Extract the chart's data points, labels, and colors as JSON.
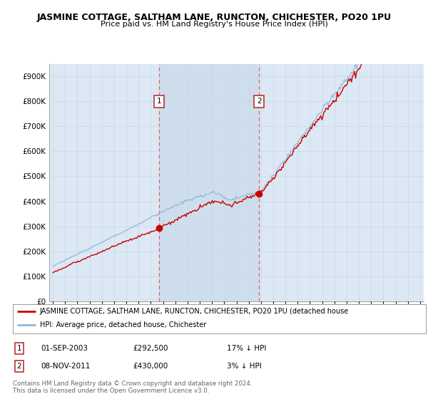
{
  "title": "JASMINE COTTAGE, SALTHAM LANE, RUNCTON, CHICHESTER, PO20 1PU",
  "subtitle": "Price paid vs. HM Land Registry's House Price Index (HPI)",
  "ylabel_ticks": [
    "£0",
    "£100K",
    "£200K",
    "£300K",
    "£400K",
    "£500K",
    "£600K",
    "£700K",
    "£800K",
    "£900K"
  ],
  "ytick_values": [
    0,
    100000,
    200000,
    300000,
    400000,
    500000,
    600000,
    700000,
    800000,
    900000
  ],
  "ylim": [
    0,
    950000
  ],
  "year_start": 1995,
  "year_end": 2025,
  "hpi_color": "#90b8d8",
  "price_color": "#cc0000",
  "marker1_year": 2003.67,
  "marker1_price": 292500,
  "marker2_year": 2011.85,
  "marker2_price": 430000,
  "marker1_label": "1",
  "marker2_label": "2",
  "legend_line1": "JASMINE COTTAGE, SALTHAM LANE, RUNCTON, CHICHESTER, PO20 1PU (detached house",
  "legend_line2": "HPI: Average price, detached house, Chichester",
  "table_row1": [
    "1",
    "01-SEP-2003",
    "£292,500",
    "17% ↓ HPI"
  ],
  "table_row2": [
    "2",
    "08-NOV-2011",
    "£430,000",
    "3% ↓ HPI"
  ],
  "footnote": "Contains HM Land Registry data © Crown copyright and database right 2024.\nThis data is licensed under the Open Government Licence v3.0.",
  "plot_bg_color": "#dce8f4",
  "vline_color": "#e06060",
  "grid_color": "#c8d8e8",
  "span_color": "#ccdcec"
}
